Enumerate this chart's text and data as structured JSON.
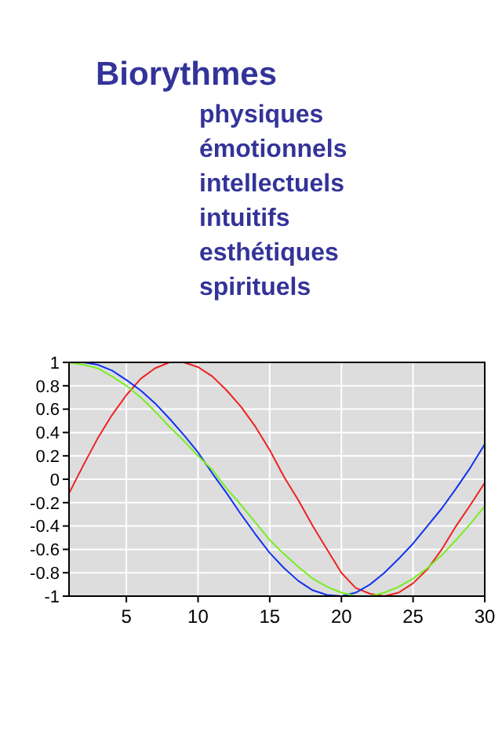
{
  "chart_data": {
    "type": "line",
    "title": "Biorythmes",
    "annotations": [
      "physiques",
      "émotionnels",
      "intellectuels",
      "intuitifs",
      "esthétiques",
      "spirituels"
    ],
    "x": [
      1,
      2,
      3,
      4,
      5,
      6,
      7,
      8,
      9,
      10,
      11,
      12,
      13,
      14,
      15,
      16,
      17,
      18,
      19,
      20,
      21,
      22,
      23,
      24,
      25,
      26,
      27,
      28,
      29,
      30
    ],
    "series": [
      {
        "color": "#ee2222",
        "values": [
          -0.12,
          0.12,
          0.35,
          0.55,
          0.72,
          0.86,
          0.95,
          1.0,
          1.0,
          0.96,
          0.88,
          0.76,
          0.62,
          0.45,
          0.25,
          0.02,
          -0.18,
          -0.4,
          -0.6,
          -0.8,
          -0.93,
          -0.98,
          -1.0,
          -0.97,
          -0.89,
          -0.77,
          -0.6,
          -0.4,
          -0.22,
          -0.03
        ]
      },
      {
        "color": "#1133ee",
        "values": [
          1.0,
          1.0,
          0.98,
          0.93,
          0.85,
          0.76,
          0.65,
          0.52,
          0.38,
          0.23,
          0.05,
          -0.12,
          -0.3,
          -0.47,
          -0.63,
          -0.76,
          -0.87,
          -0.95,
          -0.99,
          -1.0,
          -0.97,
          -0.9,
          -0.8,
          -0.68,
          -0.55,
          -0.4,
          -0.25,
          -0.08,
          0.1,
          0.3
        ]
      },
      {
        "color": "#77ee22",
        "values": [
          1.0,
          0.98,
          0.95,
          0.88,
          0.8,
          0.7,
          0.58,
          0.45,
          0.33,
          0.2,
          0.08,
          -0.08,
          -0.22,
          -0.37,
          -0.52,
          -0.64,
          -0.75,
          -0.85,
          -0.92,
          -0.97,
          -1.0,
          -1.0,
          -0.97,
          -0.92,
          -0.85,
          -0.76,
          -0.65,
          -0.52,
          -0.38,
          -0.23
        ]
      }
    ],
    "xlim": [
      1,
      30
    ],
    "xticks": [
      5,
      10,
      15,
      20,
      25,
      30
    ],
    "ylim": [
      -1,
      1
    ],
    "yticks": [
      -1,
      -0.8,
      -0.6,
      -0.4,
      -0.2,
      0,
      0.2,
      0.4,
      0.6,
      0.8,
      1
    ],
    "grid": true,
    "marker": "none",
    "line_style": "solid"
  }
}
